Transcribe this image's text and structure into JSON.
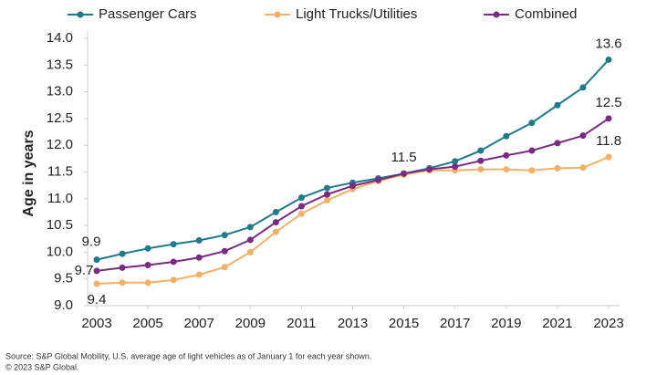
{
  "chart_data": {
    "type": "line",
    "ylabel": "Age in years",
    "x": [
      2003,
      2004,
      2005,
      2006,
      2007,
      2008,
      2009,
      2010,
      2011,
      2012,
      2013,
      2014,
      2015,
      2016,
      2017,
      2018,
      2019,
      2020,
      2021,
      2022,
      2023
    ],
    "xlim": [
      2003,
      2023
    ],
    "xticks": [
      2003,
      2005,
      2007,
      2009,
      2011,
      2013,
      2015,
      2017,
      2019,
      2021,
      2023
    ],
    "ylim": [
      9,
      14
    ],
    "yticks": [
      {
        "value": 9,
        "label": "9.0"
      },
      9.5,
      {
        "value": 10,
        "label": "10.0"
      },
      10.5,
      {
        "value": 11,
        "label": "11.0"
      },
      11.5,
      {
        "value": 12,
        "label": "12.0"
      },
      12.5,
      {
        "value": 13,
        "label": "13.0"
      },
      13.5,
      {
        "value": 14,
        "label": "14.0"
      }
    ],
    "grid": false,
    "legend": "top",
    "series": [
      {
        "name": "Passenger Cars",
        "color": "#1f7a8c",
        "values": [
          9.86,
          9.97,
          10.07,
          10.15,
          10.22,
          10.32,
          10.47,
          10.75,
          11.02,
          11.2,
          11.3,
          11.38,
          11.47,
          11.57,
          11.7,
          11.9,
          12.17,
          12.42,
          12.75,
          13.08,
          13.6
        ],
        "value_labels": [
          "9.9",
          null,
          null,
          null,
          null,
          null,
          null,
          null,
          null,
          null,
          null,
          null,
          null,
          null,
          null,
          null,
          null,
          null,
          null,
          null,
          "13.6"
        ]
      },
      {
        "name": "Light Trucks/Utilities",
        "color": "#f5b066",
        "values": [
          9.41,
          9.43,
          9.43,
          9.48,
          9.58,
          9.72,
          10.0,
          10.38,
          10.72,
          10.97,
          11.18,
          11.33,
          11.45,
          11.53,
          11.53,
          11.55,
          11.55,
          11.53,
          11.57,
          11.58,
          11.78
        ],
        "value_labels": [
          "9.4",
          null,
          null,
          null,
          null,
          null,
          null,
          null,
          null,
          null,
          null,
          null,
          null,
          null,
          null,
          null,
          null,
          null,
          null,
          null,
          "11.8"
        ]
      },
      {
        "name": "Combined",
        "color": "#7b2a83",
        "values": [
          9.65,
          9.71,
          9.76,
          9.82,
          9.9,
          10.02,
          10.23,
          10.56,
          10.86,
          11.08,
          11.24,
          11.35,
          11.47,
          11.55,
          11.6,
          11.71,
          11.81,
          11.9,
          12.04,
          12.18,
          12.5
        ],
        "value_labels": [
          "9.7",
          null,
          null,
          null,
          null,
          null,
          null,
          null,
          null,
          null,
          null,
          null,
          "11.5",
          null,
          null,
          null,
          null,
          null,
          null,
          null,
          "12.5"
        ]
      }
    ],
    "source": "Source: S&P Global Mobility, U.S. average age of light vehicles as of January 1 for each year shown.",
    "copyright": "© 2023 S&P Global."
  }
}
